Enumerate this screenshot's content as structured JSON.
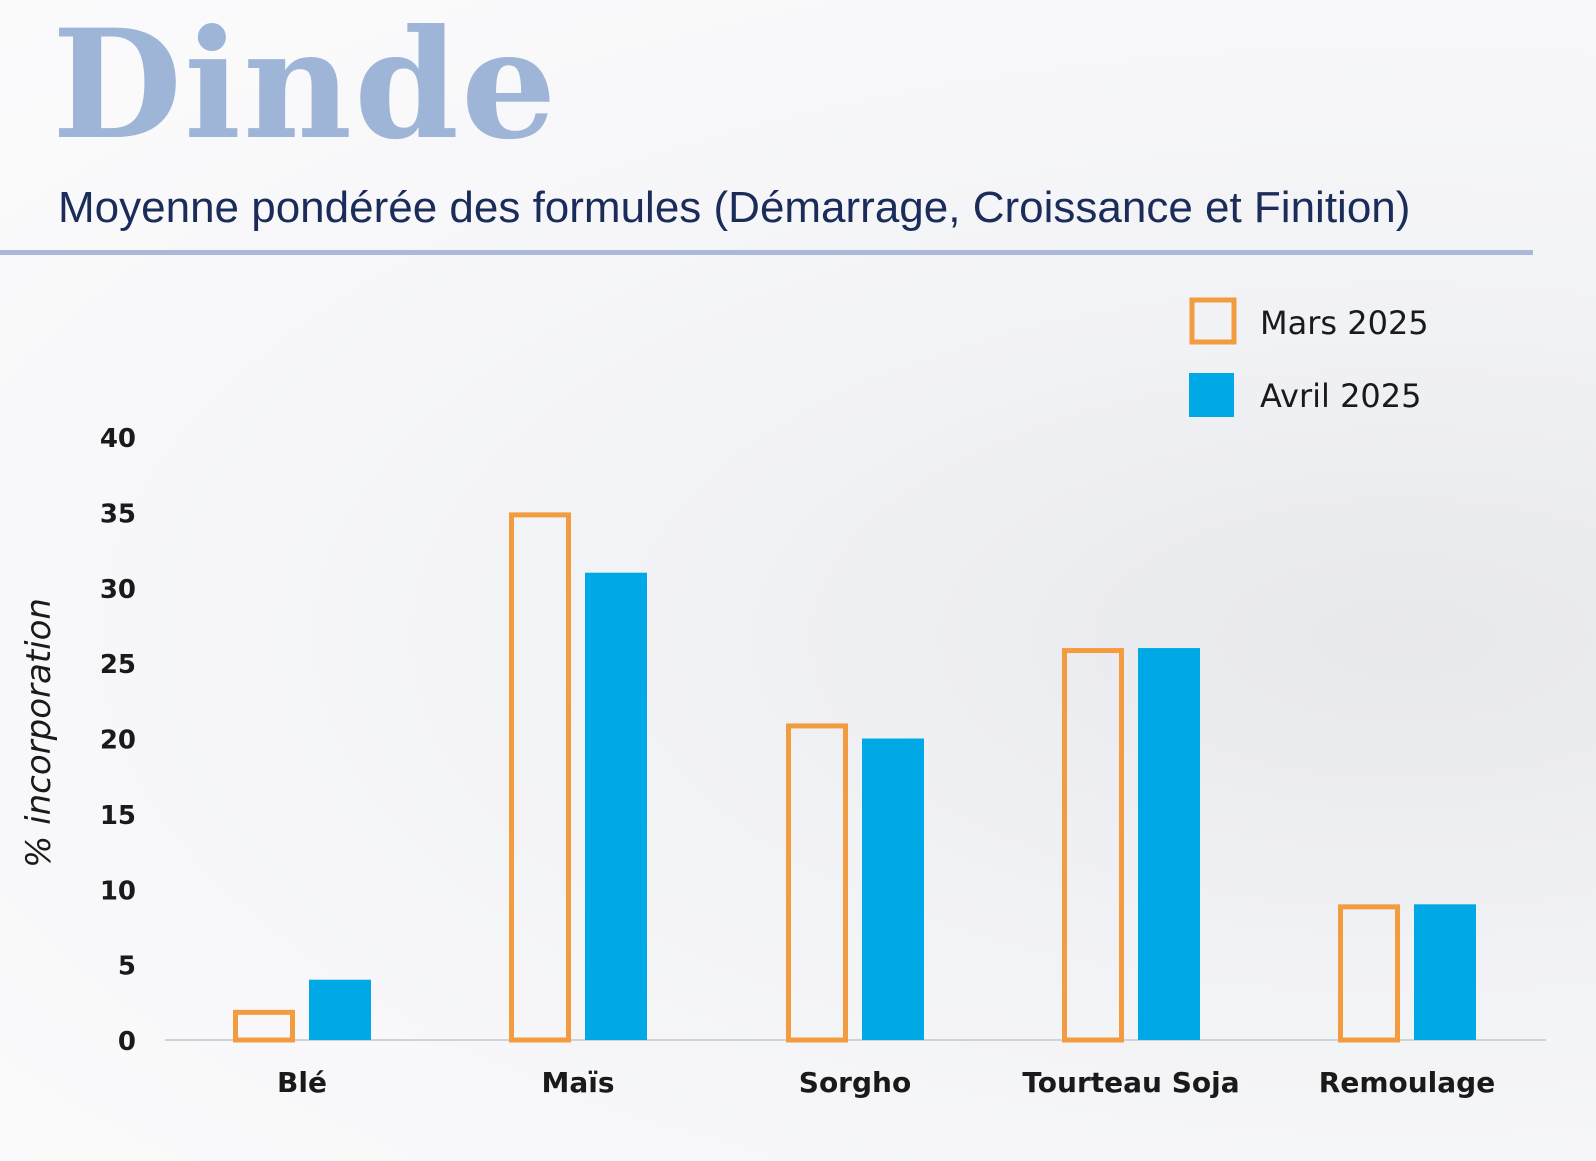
{
  "header": {
    "title": "Dinde",
    "subtitle": "Moyenne pondérée des formules (Démarrage, Croissance et Finition)"
  },
  "colors": {
    "mars": "#f39c3f",
    "avril": "#00a9e6",
    "title": "#9fb5d8",
    "subtitle": "#1b2c5a",
    "axis": "#cfd2d8"
  },
  "chart_data": {
    "type": "bar",
    "title": "",
    "xlabel": "",
    "ylabel": "% incorporation",
    "ylim": [
      0,
      40
    ],
    "yticks": [
      0,
      5,
      10,
      15,
      20,
      25,
      30,
      35,
      40
    ],
    "grid": false,
    "legend_position": "top-right",
    "categories": [
      "Blé",
      "Maïs",
      "Sorgho",
      "Tourteau Soja",
      "Remoulage"
    ],
    "series": [
      {
        "name": "Mars 2025",
        "style": "outline",
        "color": "#f39c3f",
        "values": [
          2,
          35,
          21,
          26,
          9
        ]
      },
      {
        "name": "Avril 2025",
        "style": "filled",
        "color": "#00a9e6",
        "values": [
          4,
          31,
          20,
          26,
          9
        ]
      }
    ]
  }
}
